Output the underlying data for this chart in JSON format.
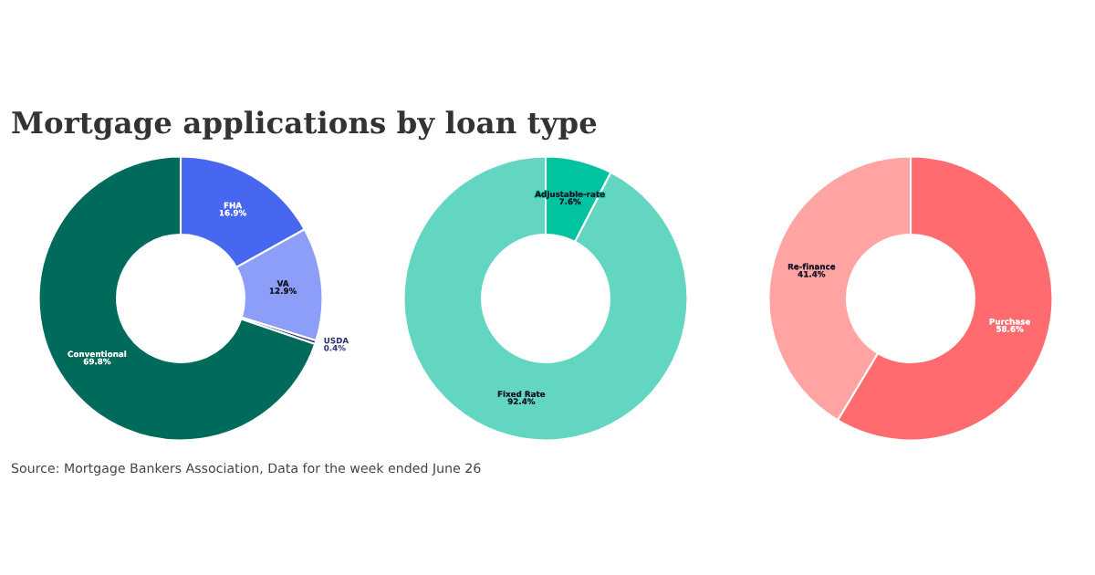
{
  "chart_data": [
    {
      "type": "donut",
      "title": "Mortgage applications by loan type",
      "categories": [
        "FHA",
        "VA",
        "USDA",
        "Conventional"
      ],
      "values": [
        16.9,
        12.9,
        0.4,
        69.8
      ],
      "colors": [
        "#4767f0",
        "#8c9ef8",
        "#2e2f6e",
        "#006b5a"
      ],
      "value_labels": [
        "16.9%",
        "12.9%",
        "0.4%",
        "69.8%"
      ],
      "annotations": [
        "Source: Mortgage Bankers Association, Data for the week ended June 26"
      ]
    },
    {
      "type": "donut",
      "categories": [
        "Adjustable-rate",
        "Fixed Rate"
      ],
      "values": [
        7.6,
        92.4
      ],
      "colors": [
        "#00c4a0",
        "#62d6c1"
      ],
      "value_labels": [
        "7.6%",
        "92.4%"
      ]
    },
    {
      "type": "donut",
      "categories": [
        "Purchase",
        "Re-finance"
      ],
      "values": [
        58.6,
        41.4
      ],
      "colors": [
        "#ff6b6e",
        "#ffa3a3"
      ],
      "value_labels": [
        "58.6%",
        "41.4%"
      ]
    }
  ]
}
